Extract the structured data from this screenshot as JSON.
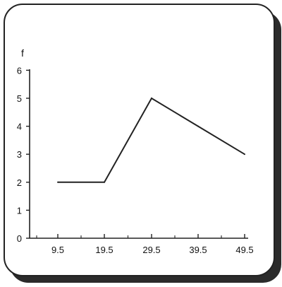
{
  "chart_data": {
    "type": "line",
    "x": [
      9.5,
      19.5,
      29.5,
      39.5,
      49.5
    ],
    "y": [
      2,
      2,
      5,
      4,
      3
    ],
    "xticks": [
      "9.5",
      "19.5",
      "29.5",
      "39.5",
      "49.5"
    ],
    "yticks": [
      "0",
      "1",
      "2",
      "3",
      "4",
      "5",
      "6"
    ],
    "ylabel": "f",
    "xlabel": "",
    "ylim": [
      0,
      6
    ],
    "grid": false,
    "line_color": "#222222"
  }
}
